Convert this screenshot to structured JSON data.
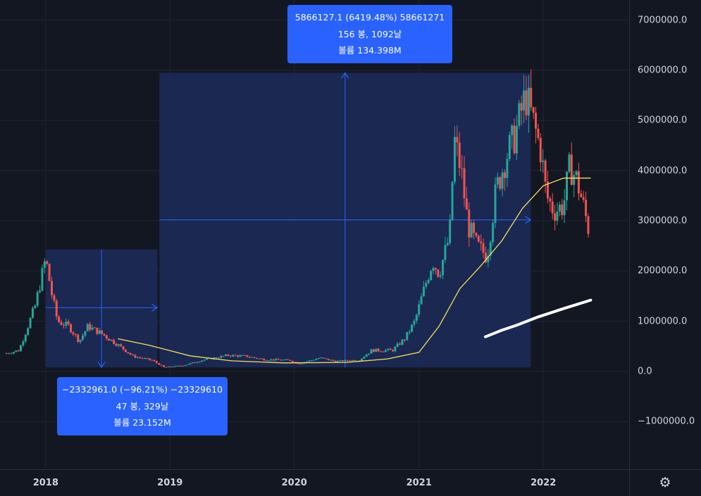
{
  "chart_data": {
    "type": "candlestick",
    "y_ticks": [
      "7000000.0",
      "6000000.0",
      "5000000.0",
      "4000000.0",
      "3000000.0",
      "2000000.0",
      "1000000.0",
      "0.0",
      "−1000000.0"
    ],
    "y_tick_values": [
      7000000,
      6000000,
      5000000,
      4000000,
      3000000,
      2000000,
      1000000,
      0,
      -1000000
    ],
    "x_ticks": [
      "2018",
      "2019",
      "2020",
      "2021",
      "2022"
    ],
    "x_tick_values": [
      "2018-01-01",
      "2019-01-01",
      "2020-01-01",
      "2021-01-01",
      "2022-01-01"
    ],
    "xlim": [
      "2017-08-20",
      "2022-09-10"
    ],
    "ylim": [
      -1950000,
      7400000
    ],
    "grid": true,
    "price_path": [
      [
        "2017-09-01",
        350000
      ],
      [
        "2017-10-15",
        420000
      ],
      [
        "2017-11-15",
        1000000
      ],
      [
        "2017-12-01",
        1300000
      ],
      [
        "2018-01-01",
        2250000
      ],
      [
        "2018-01-20",
        1500000
      ],
      [
        "2018-02-05",
        1000000
      ],
      [
        "2018-03-10",
        900000
      ],
      [
        "2018-04-10",
        600000
      ],
      [
        "2018-05-05",
        900000
      ],
      [
        "2018-06-15",
        750000
      ],
      [
        "2018-08-01",
        530000
      ],
      [
        "2018-09-15",
        300000
      ],
      [
        "2018-11-10",
        220000
      ],
      [
        "2018-12-15",
        80000
      ],
      [
        "2019-02-10",
        120000
      ],
      [
        "2019-04-10",
        230000
      ],
      [
        "2019-06-20",
        320000
      ],
      [
        "2019-08-15",
        300000
      ],
      [
        "2019-10-01",
        240000
      ],
      [
        "2019-12-20",
        220000
      ],
      [
        "2020-01-15",
        150000
      ],
      [
        "2020-03-15",
        270000
      ],
      [
        "2020-05-01",
        200000
      ],
      [
        "2020-07-10",
        230000
      ],
      [
        "2020-08-15",
        420000
      ],
      [
        "2020-10-15",
        420000
      ],
      [
        "2020-11-20",
        650000
      ],
      [
        "2020-12-20",
        1000000
      ],
      [
        "2021-01-10",
        1500000
      ],
      [
        "2021-02-10",
        2200000
      ],
      [
        "2021-03-01",
        1950000
      ],
      [
        "2021-04-01",
        2700000
      ],
      [
        "2021-04-15",
        4600000
      ],
      [
        "2021-05-05",
        4000000
      ],
      [
        "2021-05-25",
        2900000
      ],
      [
        "2021-06-20",
        2500000
      ],
      [
        "2021-07-20",
        2300000
      ],
      [
        "2021-08-15",
        3600000
      ],
      [
        "2021-09-15",
        4300000
      ],
      [
        "2021-10-10",
        4700000
      ],
      [
        "2021-11-10",
        5500000
      ],
      [
        "2021-12-01",
        5000000
      ],
      [
        "2021-12-25",
        4400000
      ],
      [
        "2022-01-10",
        3500000
      ],
      [
        "2022-02-01",
        3200000
      ],
      [
        "2022-03-01",
        3300000
      ],
      [
        "2022-03-20",
        4100000
      ],
      [
        "2022-04-10",
        3800000
      ],
      [
        "2022-04-25",
        3400000
      ],
      [
        "2022-05-15",
        2800000
      ]
    ],
    "moving_average": [
      [
        "2018-08-01",
        650000
      ],
      [
        "2018-11-01",
        520000
      ],
      [
        "2019-03-01",
        310000
      ],
      [
        "2019-07-01",
        210000
      ],
      [
        "2019-12-01",
        170000
      ],
      [
        "2020-06-01",
        180000
      ],
      [
        "2020-10-01",
        250000
      ],
      [
        "2021-01-01",
        380000
      ],
      [
        "2021-03-01",
        900000
      ],
      [
        "2021-05-01",
        1650000
      ],
      [
        "2021-07-01",
        2100000
      ],
      [
        "2021-09-01",
        2600000
      ],
      [
        "2021-11-01",
        3250000
      ],
      [
        "2022-01-01",
        3700000
      ],
      [
        "2022-03-01",
        3850000
      ],
      [
        "2022-05-20",
        3850000
      ]
    ],
    "white_line": [
      [
        "2021-07-15",
        690000
      ],
      [
        "2021-09-01",
        820000
      ],
      [
        "2021-10-15",
        920000
      ],
      [
        "2021-12-15",
        1080000
      ],
      [
        "2022-03-01",
        1250000
      ],
      [
        "2022-05-20",
        1420000
      ]
    ],
    "measure_1": {
      "start_date": "2018-01-01",
      "end_date": "2018-11-25",
      "high": 2430000,
      "low": 80000,
      "level": 1270000,
      "lines": [
        "−2332961.0 (−96.21%) −23329610",
        "47 봉, 329날",
        "볼륨 23.152M"
      ]
    },
    "measure_2": {
      "start_date": "2018-12-01",
      "end_date": "2021-11-25",
      "high": 5950000,
      "low": 80000,
      "level": 3020000,
      "lines": [
        "5866127.1 (6419.48%) 58661271",
        "156 봉, 1092날",
        "볼륨 134.398M"
      ]
    }
  },
  "colors": {
    "background": "#131722",
    "grid": "#222634",
    "up_candle": "#26a69a",
    "down_candle": "#ef5350",
    "moving_average": "#f5e05b",
    "measure_fill": "#1c2b5a",
    "measure_line": "#2962ff",
    "label_box": "#2962ff",
    "axis_text": "#d1d4dc"
  },
  "icons": {
    "settings": "settings-gear-icon"
  }
}
